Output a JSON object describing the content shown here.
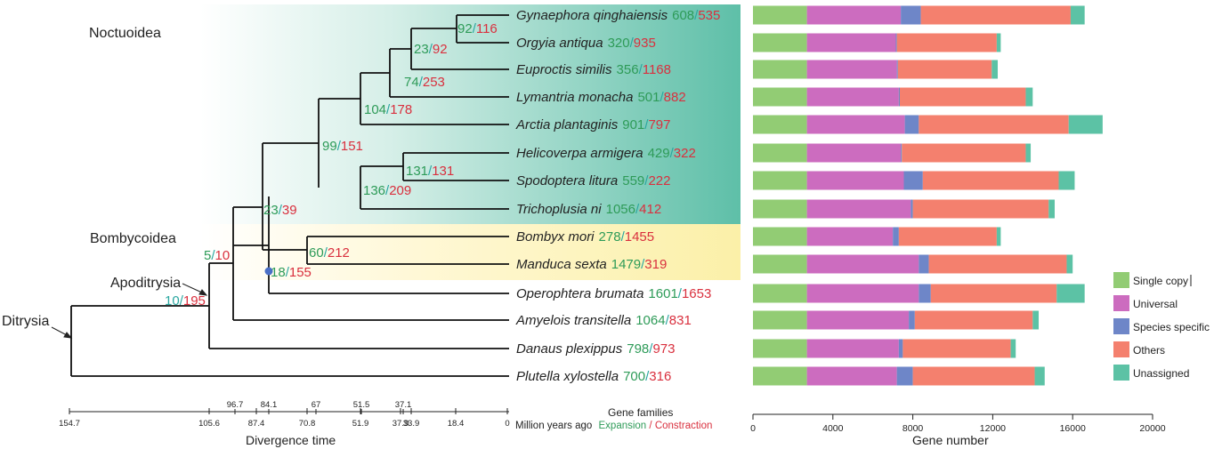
{
  "clades": {
    "noctuoidea": "Noctuoidea",
    "bombycoidea": "Bombycoidea",
    "apoditrysia": "Apoditrysia",
    "ditrysia": "Ditrysia"
  },
  "species": [
    {
      "name": "Gynaephora qinghaiensis",
      "expansion": "608",
      "contraction": "535"
    },
    {
      "name": "Orgyia antiqua",
      "expansion": "320",
      "contraction": "935"
    },
    {
      "name": "Euproctis similis",
      "expansion": "356",
      "contraction": "1168"
    },
    {
      "name": "Lymantria monacha",
      "expansion": "501",
      "contraction": "882"
    },
    {
      "name": "Arctia plantaginis",
      "expansion": "901",
      "contraction": "797"
    },
    {
      "name": "Helicoverpa armigera",
      "expansion": "429",
      "contraction": "322"
    },
    {
      "name": "Spodoptera litura",
      "expansion": "559",
      "contraction": "222"
    },
    {
      "name": "Trichoplusia ni",
      "expansion": "1056",
      "contraction": "412"
    },
    {
      "name": "Bombyx mori",
      "expansion": "278",
      "contraction": "1455"
    },
    {
      "name": "Manduca sexta",
      "expansion": "1479",
      "contraction": "319"
    },
    {
      "name": "Operophtera brumata",
      "expansion": "1601",
      "contraction": "1653"
    },
    {
      "name": "Amyelois transitella",
      "expansion": "1064",
      "contraction": "831"
    },
    {
      "name": "Danaus plexippus",
      "expansion": "798",
      "contraction": "973"
    },
    {
      "name": "Plutella xylostella",
      "expansion": "700",
      "contraction": "316"
    }
  ],
  "nodes": [
    {
      "id": "gq-oa",
      "expansion": "92",
      "contraction": "116"
    },
    {
      "id": "gq-es",
      "expansion": "23",
      "contraction": "92"
    },
    {
      "id": "gq-lm",
      "expansion": "74",
      "contraction": "253"
    },
    {
      "id": "erebidae",
      "expansion": "104",
      "contraction": "178"
    },
    {
      "id": "noctuoidea",
      "expansion": "99",
      "contraction": "151"
    },
    {
      "id": "ha-sl",
      "expansion": "131",
      "contraction": "131"
    },
    {
      "id": "noctuidae",
      "expansion": "136",
      "contraction": "209"
    },
    {
      "id": "bm-ms",
      "expansion": "60",
      "contraction": "212"
    },
    {
      "id": "macro",
      "expansion": "23",
      "contraction": "39"
    },
    {
      "id": "macro-op",
      "expansion": "18",
      "contraction": "155"
    },
    {
      "id": "obtect",
      "expansion": "5",
      "contraction": "10"
    },
    {
      "id": "apoditrysia",
      "expansion": "10",
      "contraction": "195"
    }
  ],
  "time_axis": {
    "ticks": [
      "154.7",
      "105.6",
      "87.4",
      "70.8",
      "51.9",
      "37.9",
      "33.9",
      "18.4",
      "0"
    ],
    "upper_ticks": [
      "96.7",
      "84.1",
      "67",
      "51.5",
      "37.1"
    ],
    "unit_label": "Million years ago",
    "title": "Divergence time"
  },
  "gene_families": {
    "title": "Gene families",
    "expansion_label": "Expansion",
    "separator": "/",
    "contraction_label": "Constraction"
  },
  "chart_data": {
    "type": "bar",
    "stacked": true,
    "orientation": "horizontal",
    "categories": [
      "Gynaephora qinghaiensis",
      "Orgyia antiqua",
      "Euproctis similis",
      "Lymantria monacha",
      "Arctia plantaginis",
      "Helicoverpa armigera",
      "Spodoptera litura",
      "Trichoplusia ni",
      "Bombyx mori",
      "Manduca sexta",
      "Operophtera brumata",
      "Amyelois transitella",
      "Danaus plexippus",
      "Plutella xylostella"
    ],
    "series": [
      {
        "name": "Single copy",
        "color": "#92cc74",
        "values": [
          2700,
          2700,
          2700,
          2700,
          2700,
          2700,
          2700,
          2700,
          2700,
          2700,
          2700,
          2700,
          2700,
          2700
        ]
      },
      {
        "name": "Universal",
        "color": "#cc6cbf",
        "values": [
          4700,
          4450,
          4500,
          4600,
          4900,
          4700,
          4850,
          5200,
          4300,
          5600,
          5600,
          5100,
          4600,
          4500
        ]
      },
      {
        "name": "Species specific",
        "color": "#6e86c8",
        "values": [
          1000,
          50,
          50,
          50,
          700,
          50,
          950,
          100,
          300,
          500,
          600,
          300,
          200,
          800
        ]
      },
      {
        "name": "Others",
        "color": "#f4806e",
        "values": [
          7500,
          5000,
          4700,
          6300,
          7500,
          6200,
          6800,
          6800,
          4900,
          6900,
          6300,
          5900,
          5400,
          6100
        ]
      },
      {
        "name": "Unassigned",
        "color": "#5cc2a5",
        "values": [
          700,
          200,
          300,
          350,
          1700,
          250,
          800,
          300,
          200,
          300,
          1400,
          300,
          250,
          500
        ]
      }
    ],
    "xlabel": "Gene number",
    "xlim": [
      0,
      20000
    ],
    "xticks": [
      "0",
      "4000",
      "8000",
      "12000",
      "16000",
      "20000"
    ],
    "legend_position": "right"
  }
}
